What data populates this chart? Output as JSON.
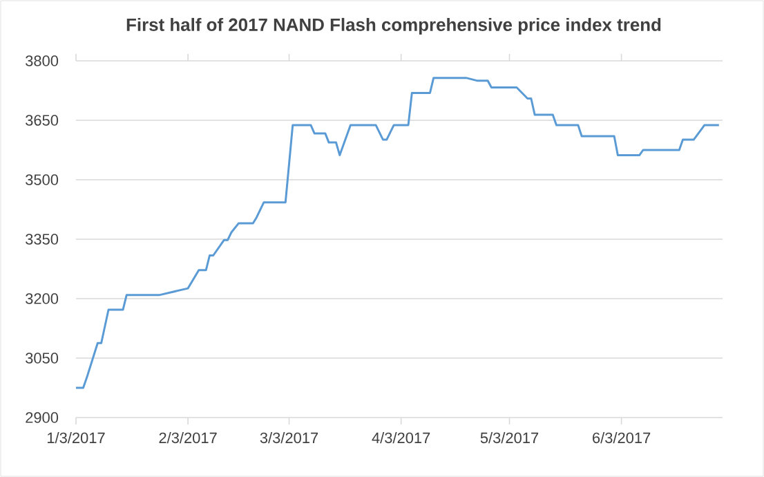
{
  "chart_data": {
    "type": "line",
    "title": "First half of 2017 NAND Flash comprehensive price index trend",
    "x": [
      "2017-01-03",
      "2017-01-05",
      "2017-01-06",
      "2017-01-09",
      "2017-01-10",
      "2017-01-12",
      "2017-01-16",
      "2017-01-17",
      "2017-01-26",
      "2017-02-03",
      "2017-02-06",
      "2017-02-08",
      "2017-02-09",
      "2017-02-10",
      "2017-02-13",
      "2017-02-14",
      "2017-02-15",
      "2017-02-17",
      "2017-02-21",
      "2017-02-22",
      "2017-02-24",
      "2017-03-02",
      "2017-03-04",
      "2017-03-09",
      "2017-03-10",
      "2017-03-13",
      "2017-03-14",
      "2017-03-16",
      "2017-03-17",
      "2017-03-20",
      "2017-03-27",
      "2017-03-29",
      "2017-03-30",
      "2017-04-01",
      "2017-04-05",
      "2017-04-06",
      "2017-04-11",
      "2017-04-12",
      "2017-04-21",
      "2017-04-24",
      "2017-04-27",
      "2017-04-28",
      "2017-05-05",
      "2017-05-08",
      "2017-05-09",
      "2017-05-10",
      "2017-05-15",
      "2017-05-16",
      "2017-05-22",
      "2017-05-23",
      "2017-06-01",
      "2017-06-02",
      "2017-06-08",
      "2017-06-09",
      "2017-06-19",
      "2017-06-20",
      "2017-06-23",
      "2017-06-26",
      "2017-06-30"
    ],
    "series": [
      {
        "color": "#5b9bd5",
        "values": [
          2975,
          2975,
          3001,
          3088,
          3088,
          3172,
          3172,
          3209,
          3209,
          3226,
          3272,
          3272,
          3309,
          3309,
          3348,
          3348,
          3367,
          3390,
          3390,
          3405,
          3443,
          3443,
          3638,
          3638,
          3617,
          3617,
          3594,
          3594,
          3562,
          3638,
          3638,
          3601,
          3601,
          3638,
          3638,
          3719,
          3719,
          3757,
          3757,
          3750,
          3750,
          3733,
          3733,
          3705,
          3705,
          3664,
          3664,
          3638,
          3638,
          3610,
          3610,
          3562,
          3562,
          3575,
          3575,
          3601,
          3601,
          3638,
          3638
        ]
      }
    ],
    "xlim": [
      "2017-01-03",
      "2017-07-01"
    ],
    "xticks": [
      {
        "value": "2017-01-03",
        "label": "1/3/2017"
      },
      {
        "value": "2017-02-03",
        "label": "2/3/2017"
      },
      {
        "value": "2017-03-03",
        "label": "3/3/2017"
      },
      {
        "value": "2017-04-03",
        "label": "4/3/2017"
      },
      {
        "value": "2017-05-03",
        "label": "5/3/2017"
      },
      {
        "value": "2017-06-03",
        "label": "6/3/2017"
      }
    ],
    "ylim": [
      2900,
      3800
    ],
    "yticks": [
      2900,
      3050,
      3200,
      3350,
      3500,
      3650,
      3800
    ],
    "grid": "y",
    "line_style": "solid"
  }
}
